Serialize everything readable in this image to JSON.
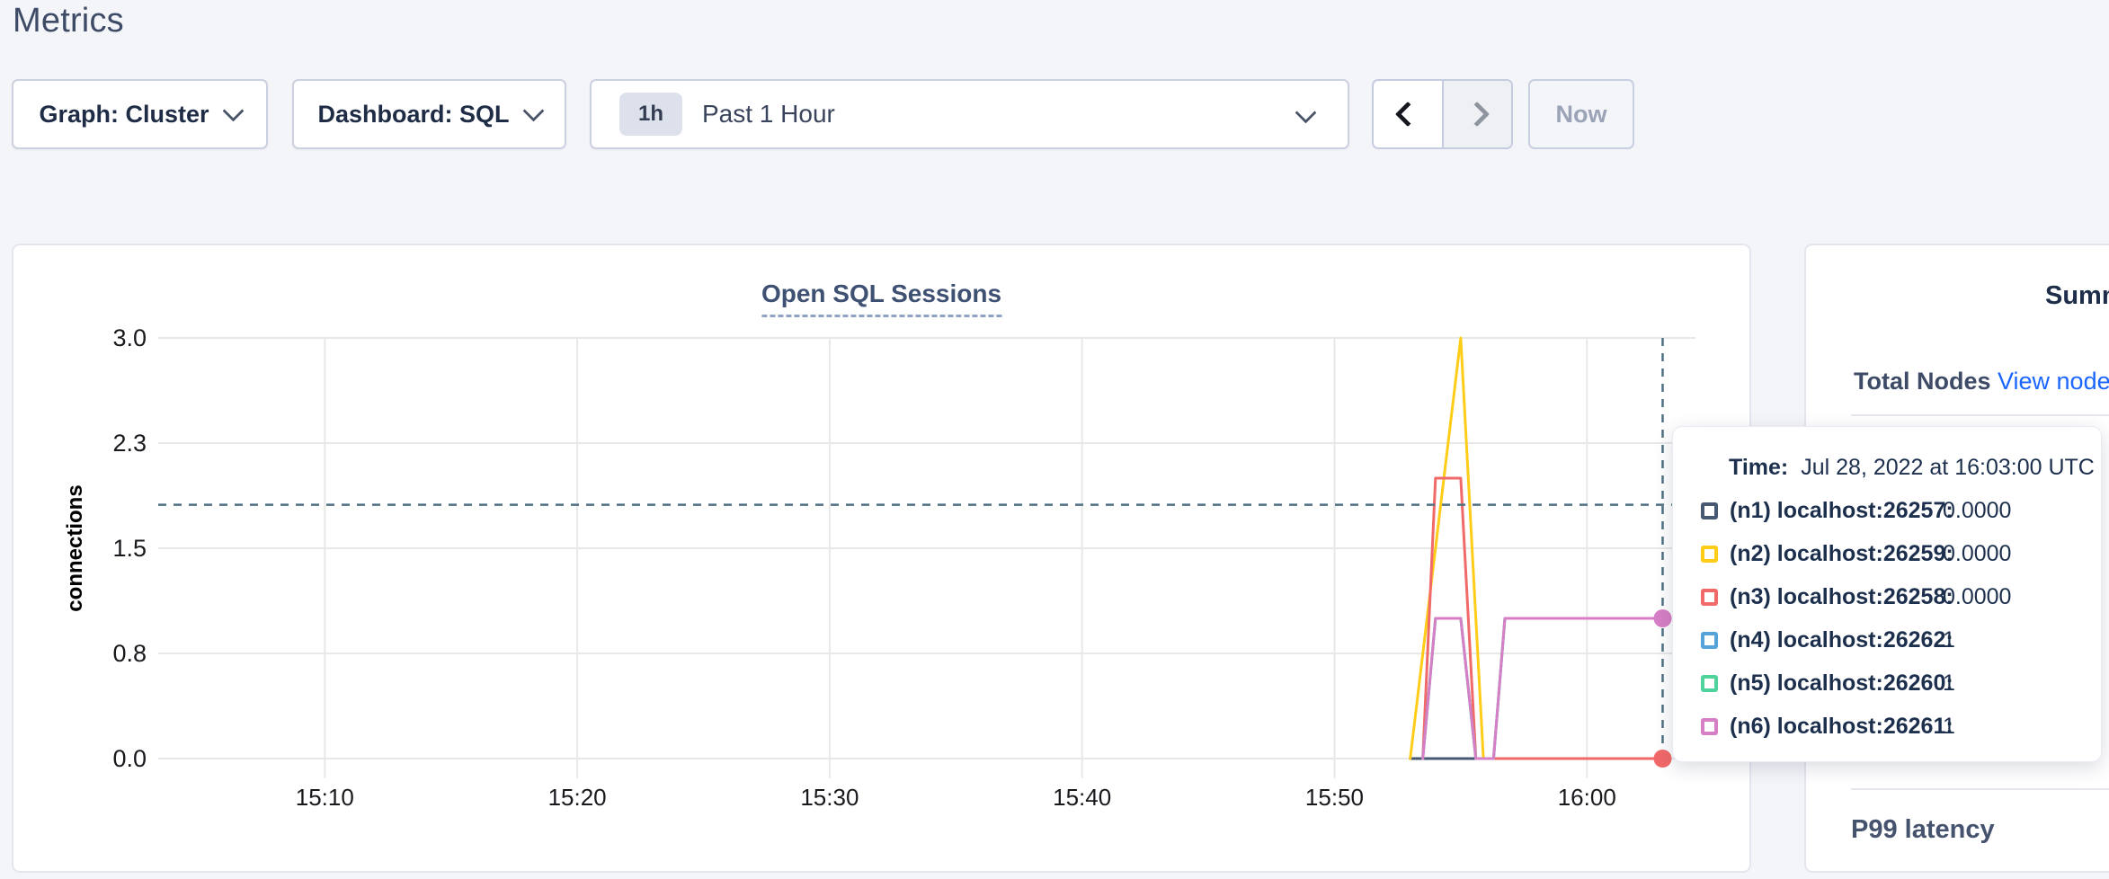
{
  "page": {
    "title": "Metrics"
  },
  "toolbar": {
    "graph_dropdown": {
      "label": "Graph: Cluster"
    },
    "dashboard_dropdown": {
      "label": "Dashboard: SQL"
    },
    "time_selector": {
      "badge": "1h",
      "label": "Past 1 Hour"
    },
    "now_label": "Now"
  },
  "chart_data": {
    "type": "line",
    "title": "Open SQL Sessions",
    "ylabel": "connections",
    "ylim": [
      0,
      3
    ],
    "grid": true,
    "x_range_minutes_after_1500": [
      3.4,
      64.3
    ],
    "x_ticks": [
      {
        "label": "15:10",
        "minute": 10
      },
      {
        "label": "15:20",
        "minute": 20
      },
      {
        "label": "15:30",
        "minute": 30
      },
      {
        "label": "15:40",
        "minute": 40
      },
      {
        "label": "15:50",
        "minute": 50
      },
      {
        "label": "16:00",
        "minute": 60
      }
    ],
    "y_ticks": [
      {
        "label": "0.0",
        "value": 0
      },
      {
        "label": "0.8",
        "value": 0.75
      },
      {
        "label": "1.5",
        "value": 1.5
      },
      {
        "label": "2.3",
        "value": 2.25
      },
      {
        "label": "3.0",
        "value": 3
      }
    ],
    "series": [
      {
        "name": "n1-localhost-26257",
        "color": "#475872",
        "points": [
          [
            53.0,
            0
          ],
          [
            63.3,
            0
          ]
        ]
      },
      {
        "name": "n2-localhost-26259",
        "color": "#ffcd17",
        "points": [
          [
            53.0,
            0
          ],
          [
            55.0,
            3
          ],
          [
            55.9,
            0
          ],
          [
            63.3,
            0
          ]
        ]
      },
      {
        "name": "n3-localhost-26258",
        "color": "#f16969",
        "points": [
          [
            53.5,
            0
          ],
          [
            54.0,
            2
          ],
          [
            55.0,
            2
          ],
          [
            55.6,
            0
          ],
          [
            63.3,
            0
          ]
        ]
      },
      {
        "name": "n4-localhost-26262",
        "color": "#55a3d9",
        "points": [
          [
            53.5,
            0
          ],
          [
            54.0,
            1
          ],
          [
            55.0,
            1
          ],
          [
            55.6,
            0
          ],
          [
            56.3,
            0
          ],
          [
            56.75,
            1
          ],
          [
            63.3,
            1
          ]
        ]
      },
      {
        "name": "n5-localhost-26260",
        "color": "#4dd39b",
        "points": [
          [
            53.5,
            0
          ],
          [
            54.0,
            1
          ],
          [
            55.0,
            1
          ],
          [
            55.6,
            0
          ],
          [
            56.3,
            0
          ],
          [
            56.75,
            1
          ],
          [
            63.3,
            1
          ]
        ]
      },
      {
        "name": "n6-localhost-26261",
        "color": "#d77fc6",
        "points": [
          [
            53.5,
            0
          ],
          [
            54.0,
            1
          ],
          [
            55.0,
            1
          ],
          [
            55.6,
            0
          ],
          [
            56.3,
            0
          ],
          [
            56.75,
            1
          ],
          [
            63.3,
            1
          ]
        ]
      }
    ],
    "crosshair": {
      "minute": 63,
      "time": "16:03",
      "hover_value": 1.81,
      "color": "#4f7183",
      "dots": [
        {
          "value": 0,
          "color": "#f16969"
        },
        {
          "value": 1,
          "color": "#d77fc6"
        }
      ]
    },
    "legend_position": "tooltip"
  },
  "tooltip": {
    "time_label": "Time:",
    "time_value": "Jul 28, 2022 at 16:03:00 UTC",
    "rows": [
      {
        "label": "(n1) localhost:26257:",
        "value": "0.0000",
        "color": "#475872"
      },
      {
        "label": "(n2) localhost:26259:",
        "value": "0.0000",
        "color": "#ffcd17"
      },
      {
        "label": "(n3) localhost:26258:",
        "value": "0.0000",
        "color": "#f16969"
      },
      {
        "label": "(n4) localhost:26262:",
        "value": "1",
        "color": "#55a3d9"
      },
      {
        "label": "(n5) localhost:26260:",
        "value": "1",
        "color": "#4dd39b"
      },
      {
        "label": "(n6) localhost:26261:",
        "value": "1",
        "color": "#d77fc6"
      }
    ]
  },
  "sidebar": {
    "heading": "Summary",
    "total_nodes_label": "Total Nodes",
    "view_nodes_link": "View nodes",
    "p99_label": "P99 latency"
  },
  "colors": {
    "link_blue": "#1a66ff",
    "gridline": "#e8e8e8",
    "axis_text": "#17191d",
    "crosshair": "#4f7183"
  }
}
